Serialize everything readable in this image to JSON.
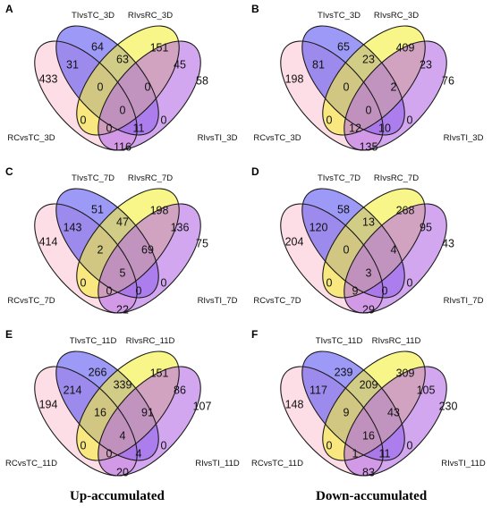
{
  "panels": [
    {
      "letter": "A",
      "sets": [
        "TIvsTC_3D",
        "RIvsRC_3D",
        "RCvsTC_3D",
        "RIvsTI_3D"
      ],
      "counts": {
        "RC": "433",
        "TI": "64",
        "RI": "151",
        "RT": "58",
        "RC_TI": "31",
        "TI_RI": "63",
        "RI_RT": "45",
        "RC_RI": "0",
        "TI_RT": "0",
        "RC_RT": "116",
        "RC_TI_RI": "0",
        "TI_RI_RT": "0",
        "RC_TI_RT": "0",
        "RC_RI_RT": "11",
        "ALL": "0"
      }
    },
    {
      "letter": "B",
      "sets": [
        "TIvsTC_3D",
        "RIvsRC_3D",
        "RCvsTC_3D",
        "RIvsTI_3D"
      ],
      "counts": {
        "RC": "198",
        "TI": "65",
        "RI": "409",
        "RT": "76",
        "RC_TI": "81",
        "TI_RI": "23",
        "RI_RT": "23",
        "RC_RI": "0",
        "TI_RT": "0",
        "RC_RT": "135",
        "RC_TI_RI": "0",
        "TI_RI_RT": "2",
        "RC_TI_RT": "12",
        "RC_RI_RT": "10",
        "ALL": "0"
      }
    },
    {
      "letter": "C",
      "sets": [
        "TIvsTC_7D",
        "RIvsRC_7D",
        "RCvsTC_7D",
        "RIvsTI_7D"
      ],
      "counts": {
        "RC": "414",
        "TI": "51",
        "RI": "198",
        "RT": "75",
        "RC_TI": "143",
        "TI_RI": "47",
        "RI_RT": "136",
        "RC_RI": "0",
        "TI_RT": "0",
        "RC_RT": "22",
        "RC_TI_RI": "2",
        "TI_RI_RT": "69",
        "RC_TI_RT": "0",
        "RC_RI_RT": "0",
        "ALL": "5"
      }
    },
    {
      "letter": "D",
      "sets": [
        "TIvsTC_7D",
        "RIvsRC_7D",
        "RCvsTC_7D",
        "RIvsTI_7D"
      ],
      "counts": {
        "RC": "204",
        "TI": "58",
        "RI": "268",
        "RT": "43",
        "RC_TI": "120",
        "TI_RI": "13",
        "RI_RT": "95",
        "RC_RI": "0",
        "TI_RT": "0",
        "RC_RT": "29",
        "RC_TI_RI": "0",
        "TI_RI_RT": "4",
        "RC_TI_RT": "9",
        "RC_RI_RT": "0",
        "ALL": "3"
      }
    },
    {
      "letter": "E",
      "sets": [
        "TIvsTC_11D",
        "RIvsRC_11D",
        "RCvsTC_11D",
        "RIvsTI_11D"
      ],
      "counts": {
        "RC": "194",
        "TI": "266",
        "RI": "151",
        "RT": "107",
        "RC_TI": "214",
        "TI_RI": "339",
        "RI_RT": "86",
        "RC_RI": "0",
        "TI_RT": "0",
        "RC_RT": "20",
        "RC_TI_RI": "16",
        "TI_RI_RT": "91",
        "RC_TI_RT": "0",
        "RC_RI_RT": "4",
        "ALL": "4"
      }
    },
    {
      "letter": "F",
      "sets": [
        "TIvsTC_11D",
        "RIvsRC_11D",
        "RCvsTC_11D",
        "RIvsTI_11D"
      ],
      "counts": {
        "RC": "148",
        "TI": "239",
        "RI": "309",
        "RT": "230",
        "RC_TI": "117",
        "TI_RI": "209",
        "RI_RT": "105",
        "RC_RI": "0",
        "TI_RT": "0",
        "RC_RT": "83",
        "RC_TI_RI": "9",
        "TI_RI_RT": "43",
        "RC_TI_RT": "1",
        "RC_RI_RT": "11",
        "ALL": "16"
      }
    }
  ],
  "captions": {
    "left": "Up-accumulated",
    "right": "Down-accumulated"
  },
  "colors": {
    "RCvsTC": "#fbc6d6",
    "TIvsTC": "#5c55f2",
    "RIvsRC": "#f5f03a",
    "RIvsTI": "#b66ce6",
    "outline": "#1a1a1a"
  }
}
